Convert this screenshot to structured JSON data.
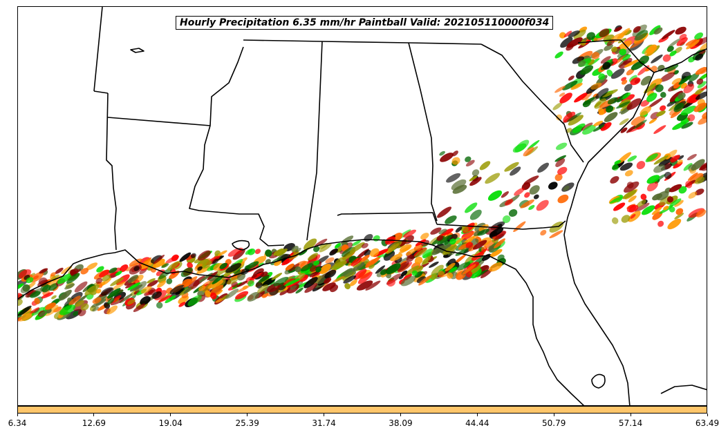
{
  "title": "Hourly Precipitation 6.35 mm/hr Paintball Valid: 202105110000f034",
  "colorbar": {
    "color": "#ffc66b",
    "ticks": [
      "6.34",
      "12.69",
      "19.04",
      "25.39",
      "31.74",
      "38.09",
      "44.44",
      "50.79",
      "57.14",
      "63.49"
    ]
  },
  "paintball_colors": [
    "#ff0000",
    "#ff6600",
    "#ff9900",
    "#00dd00",
    "#006600",
    "#8b0000",
    "#999900",
    "#556b2f",
    "#000000"
  ]
}
